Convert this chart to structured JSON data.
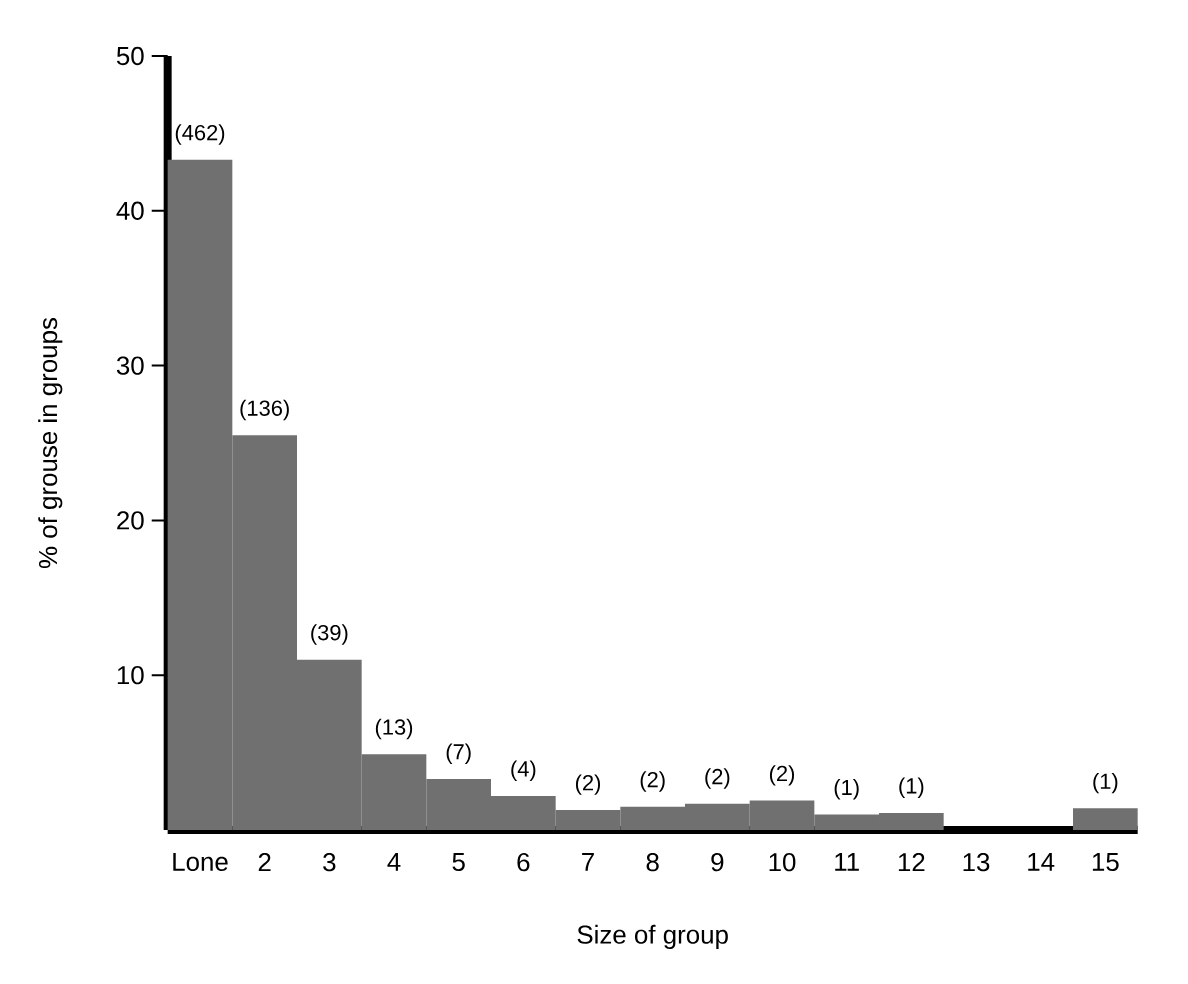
{
  "chart_data": {
    "type": "bar",
    "xlabel": "Size of group",
    "ylabel": "% of grouse in groups",
    "categories": [
      "Lone",
      "2",
      "3",
      "4",
      "5",
      "6",
      "7",
      "8",
      "9",
      "10",
      "11",
      "12",
      "13",
      "14",
      "15"
    ],
    "values": [
      43.3,
      25.5,
      11.0,
      4.9,
      3.3,
      2.2,
      1.3,
      1.5,
      1.7,
      1.9,
      1.0,
      1.1,
      0,
      0,
      1.4
    ],
    "annotations": [
      "(462)",
      "(136)",
      "(39)",
      "(13)",
      "(7)",
      "(4)",
      "(2)",
      "(2)",
      "(2)",
      "(2)",
      "(1)",
      "(1)",
      "(1)"
    ],
    "color": "#707070",
    "ylim": [
      0,
      50
    ],
    "yticks": [
      10,
      20,
      30,
      40,
      50
    ]
  }
}
